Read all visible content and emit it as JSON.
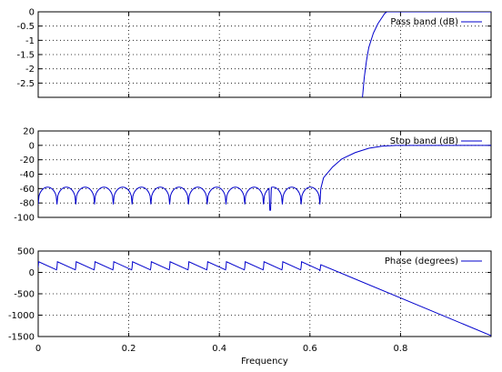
{
  "chart_data": [
    {
      "type": "line",
      "series": [
        {
          "name": "Pass band (dB)"
        }
      ],
      "xlim": [
        0,
        1
      ],
      "ylim": [
        -3,
        0
      ],
      "yticks": [
        "0",
        "-0.5",
        "-1",
        "-1.5",
        "-2",
        "-2.5"
      ],
      "grid": true,
      "legend_position": "top-right",
      "points": [
        [
          0.716,
          -3.0
        ],
        [
          0.72,
          -2.3
        ],
        [
          0.725,
          -1.7
        ],
        [
          0.73,
          -1.25
        ],
        [
          0.74,
          -0.75
        ],
        [
          0.75,
          -0.42
        ],
        [
          0.76,
          -0.18
        ],
        [
          0.765,
          -0.06
        ],
        [
          0.77,
          0.0
        ],
        [
          1.0,
          0.0
        ]
      ]
    },
    {
      "type": "line",
      "series": [
        {
          "name": "Stop band (dB)"
        }
      ],
      "xlim": [
        0,
        1
      ],
      "ylim": [
        -100,
        20
      ],
      "yticks": [
        "20",
        "0",
        "-20",
        "-40",
        "-60",
        "-80",
        "-100"
      ],
      "grid": true,
      "legend_position": "top-right",
      "ripple": {
        "x_start": 0.0,
        "x_end": 0.622,
        "lobes": 15,
        "peak_db": -58,
        "null_db": -82,
        "deep_null_x": 0.512,
        "deep_null_db": -90
      },
      "transition": [
        [
          0.622,
          -82
        ],
        [
          0.624,
          -60
        ],
        [
          0.63,
          -45
        ],
        [
          0.65,
          -30
        ],
        [
          0.67,
          -19
        ],
        [
          0.7,
          -10
        ],
        [
          0.73,
          -4
        ],
        [
          0.76,
          -1
        ],
        [
          0.79,
          0
        ],
        [
          1.0,
          0
        ]
      ]
    },
    {
      "type": "line",
      "series": [
        {
          "name": "Phase (degrees)"
        }
      ],
      "xlim": [
        0,
        1
      ],
      "ylim": [
        -1500,
        500
      ],
      "yticks": [
        "500",
        "0",
        "-500",
        "-1000",
        "-1500"
      ],
      "xticks": [
        "0",
        "0.2",
        "0.4",
        "0.6",
        "0.8"
      ],
      "xticks_values": [
        0,
        0.2,
        0.4,
        0.6,
        0.8
      ],
      "xlabel": "Frequency",
      "grid": true,
      "legend_position": "top-right",
      "sawtooth": {
        "x_start": 0.0,
        "x_end": 0.622,
        "teeth": 15,
        "top": 250,
        "bottom": 120
      },
      "linear": [
        [
          0.622,
          30
        ],
        [
          0.624,
          180
        ],
        [
          1.0,
          -1480
        ]
      ]
    }
  ]
}
